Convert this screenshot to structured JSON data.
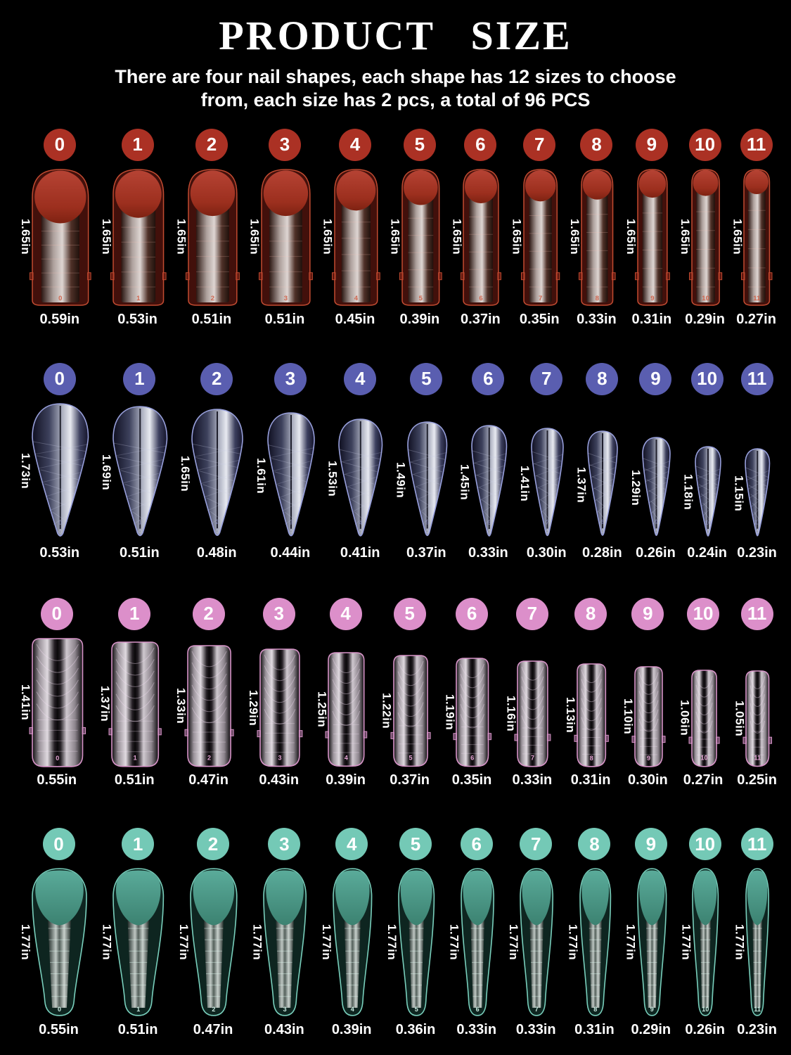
{
  "header": {
    "title": "PRODUCT SIZE",
    "subtitle_line1": "There are four nail shapes, each shape has 12 sizes to choose",
    "subtitle_line2": "from, each size has 2 pcs, a total of 96 PCS"
  },
  "shape_rows": [
    {
      "shape_icon": "round-top-dual-form-nail",
      "badge_color": "#ab3124",
      "sizes": [
        "0",
        "1",
        "2",
        "3",
        "4",
        "5",
        "6",
        "7",
        "8",
        "9",
        "10",
        "11"
      ],
      "lengths": [
        "1.65in",
        "1.65in",
        "1.65in",
        "1.65in",
        "1.65in",
        "1.65in",
        "1.65in",
        "1.65in",
        "1.65in",
        "1.65in",
        "1.65in",
        "1.65in"
      ],
      "widths": [
        "0.59in",
        "0.53in",
        "0.51in",
        "0.51in",
        "0.45in",
        "0.39in",
        "0.37in",
        "0.35in",
        "0.33in",
        "0.31in",
        "0.29in",
        "0.27in"
      ]
    },
    {
      "shape_icon": "stiletto-dual-form-nail",
      "badge_color": "#5a5eb0",
      "sizes": [
        "0",
        "1",
        "2",
        "3",
        "4",
        "5",
        "6",
        "7",
        "8",
        "9",
        "10",
        "11"
      ],
      "lengths": [
        "1.73in",
        "1.69in",
        "1.65in",
        "1.61in",
        "1.53in",
        "1.49in",
        "1.45in",
        "1.41in",
        "1.37in",
        "1.29in",
        "1.18in",
        "1.15in"
      ],
      "widths": [
        "0.53in",
        "0.51in",
        "0.48in",
        "0.44in",
        "0.41in",
        "0.37in",
        "0.33in",
        "0.30in",
        "0.28in",
        "0.26in",
        "0.24in",
        "0.23in"
      ]
    },
    {
      "shape_icon": "square-dual-form-nail",
      "badge_color": "#dc8fca",
      "sizes": [
        "0",
        "1",
        "2",
        "3",
        "4",
        "5",
        "6",
        "7",
        "8",
        "9",
        "10",
        "11"
      ],
      "lengths": [
        "1.41in",
        "1.37in",
        "1.33in",
        "1.29in",
        "1.25in",
        "1.22in",
        "1.19in",
        "1.16in",
        "1.13in",
        "1.10in",
        "1.06in",
        "1.05in"
      ],
      "widths": [
        "0.55in",
        "0.51in",
        "0.47in",
        "0.43in",
        "0.39in",
        "0.37in",
        "0.35in",
        "0.33in",
        "0.31in",
        "0.30in",
        "0.27in",
        "0.25in"
      ]
    },
    {
      "shape_icon": "duck-dual-form-nail",
      "badge_color": "#74c9b6",
      "sizes": [
        "0",
        "1",
        "2",
        "3",
        "4",
        "5",
        "6",
        "7",
        "8",
        "9",
        "10",
        "11"
      ],
      "lengths": [
        "1.77in",
        "1.77in",
        "1.77in",
        "1.77in",
        "1.77in",
        "1.77in",
        "1.77in",
        "1.77in",
        "1.77in",
        "1.77in",
        "1.77in",
        "1.77in"
      ],
      "widths": [
        "0.55in",
        "0.51in",
        "0.47in",
        "0.43in",
        "0.39in",
        "0.36in",
        "0.33in",
        "0.33in",
        "0.31in",
        "0.29in",
        "0.26in",
        "0.23in"
      ]
    }
  ]
}
